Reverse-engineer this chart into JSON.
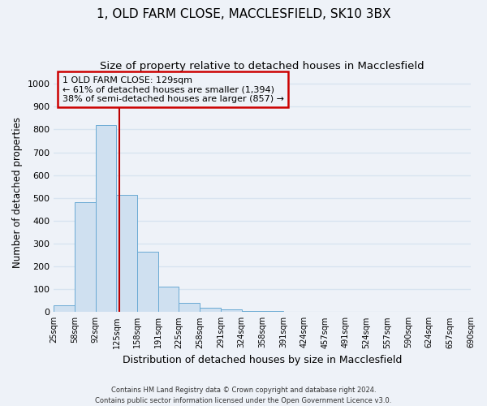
{
  "title1": "1, OLD FARM CLOSE, MACCLESFIELD, SK10 3BX",
  "title2": "Size of property relative to detached houses in Macclesfield",
  "xlabel": "Distribution of detached houses by size in Macclesfield",
  "ylabel": "Number of detached properties",
  "bin_labels": [
    "25sqm",
    "58sqm",
    "92sqm",
    "125sqm",
    "158sqm",
    "191sqm",
    "225sqm",
    "258sqm",
    "291sqm",
    "324sqm",
    "358sqm",
    "391sqm",
    "424sqm",
    "457sqm",
    "491sqm",
    "524sqm",
    "557sqm",
    "590sqm",
    "624sqm",
    "657sqm",
    "690sqm"
  ],
  "bar_values": [
    30,
    480,
    820,
    515,
    265,
    110,
    40,
    20,
    10,
    5,
    5,
    2,
    2,
    2,
    2,
    2,
    2,
    2,
    2,
    2
  ],
  "bar_color": "#cfe0f0",
  "bar_edge_color": "#6aaad4",
  "bg_color": "#eef2f8",
  "grid_color": "#d8e4f0",
  "vline_color": "#bb0000",
  "annotation_text": "1 OLD FARM CLOSE: 129sqm\n← 61% of detached houses are smaller (1,394)\n38% of semi-detached houses are larger (857) →",
  "annotation_box_color": "#cc0000",
  "ylim": [
    0,
    1050
  ],
  "footer1": "Contains HM Land Registry data © Crown copyright and database right 2024.",
  "footer2": "Contains public sector information licensed under the Open Government Licence v3.0.",
  "title1_fontsize": 11,
  "title2_fontsize": 9.5,
  "xlabel_fontsize": 9,
  "ylabel_fontsize": 8.5,
  "ytick_values": [
    0,
    100,
    200,
    300,
    400,
    500,
    600,
    700,
    800,
    900,
    1000
  ]
}
